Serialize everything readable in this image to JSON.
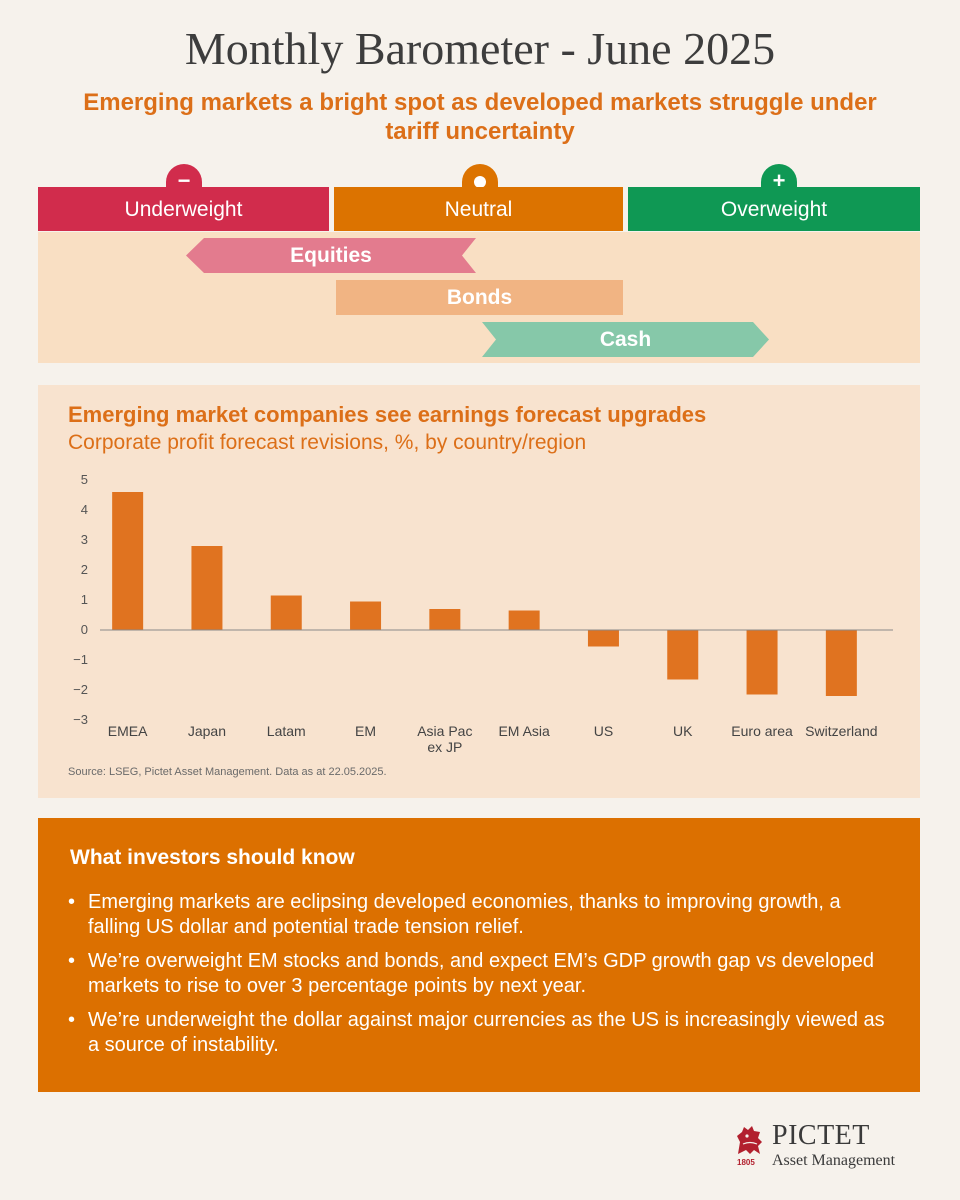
{
  "header": {
    "title": "Monthly Barometer - June 2025",
    "subtitle": "Emerging markets a bright spot as developed markets struggle under tariff uncertainty"
  },
  "barometer": {
    "bands": [
      {
        "label": "Underweight",
        "symbol": "−",
        "color": "#d12c4c"
      },
      {
        "label": "Neutral",
        "symbol": "dot",
        "color": "#dc7300"
      },
      {
        "label": "Overweight",
        "symbol": "+",
        "color": "#0f9854"
      }
    ],
    "assets": [
      {
        "label": "Equities",
        "color": "#e37b8e"
      },
      {
        "label": "Bonds",
        "color": "#f1b483"
      },
      {
        "label": "Cash",
        "color": "#86c8a9"
      }
    ]
  },
  "chart_data": {
    "type": "bar",
    "title": "Emerging market companies see earnings forecast upgrades",
    "subtitle": "Corporate profit forecast revisions, %, by country/region",
    "categories": [
      "EMEA",
      "Japan",
      "Latam",
      "EM",
      "Asia Pac ex JP",
      "EM Asia",
      "US",
      "UK",
      "Euro area",
      "Switzerland"
    ],
    "category_display": [
      [
        "EMEA"
      ],
      [
        "Japan"
      ],
      [
        "Latam"
      ],
      [
        "EM"
      ],
      [
        "Asia Pac",
        "ex JP"
      ],
      [
        "EM Asia"
      ],
      [
        "US"
      ],
      [
        "UK"
      ],
      [
        "Euro area"
      ],
      [
        "Switzerland"
      ]
    ],
    "values": [
      4.6,
      2.8,
      1.15,
      0.95,
      0.7,
      0.65,
      -0.55,
      -1.65,
      -2.15,
      -2.2
    ],
    "yticks": [
      5,
      4,
      3,
      2,
      1,
      0,
      -1,
      -2,
      -3
    ],
    "ytick_labels": [
      "5",
      "4",
      "3",
      "2",
      "1",
      "0",
      "−1",
      "−2",
      "−3"
    ],
    "ylim": [
      -3,
      5
    ],
    "bar_color": "#e07320",
    "grid": false,
    "source": "Source: LSEG, Pictet Asset Management. Data as at 22.05.2025."
  },
  "insights": {
    "title": "What investors should know",
    "bullets": [
      "Emerging markets are eclipsing developed economies, thanks to improving growth, a falling US dollar and potential trade tension relief.",
      "We’re overweight EM stocks and bonds, and expect EM’s GDP growth gap vs developed markets to rise to over 3 percentage points by next year.",
      "We’re underweight the dollar against major currencies as the US is increasingly viewed as a source of instability."
    ]
  },
  "logo": {
    "name": "PICTET",
    "tagline": "Asset Management",
    "year": "1805",
    "icon": "lion-crest-icon",
    "color": "#b2202e"
  }
}
